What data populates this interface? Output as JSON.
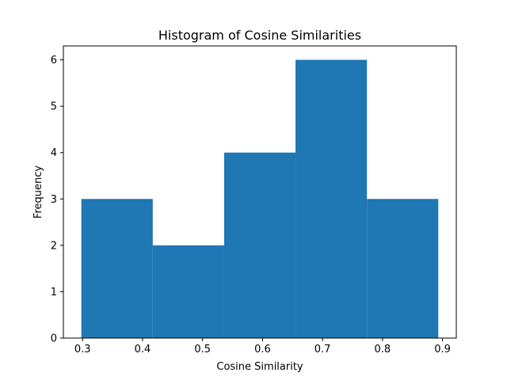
{
  "colors": {
    "bar": "#1f77b4",
    "axis": "#000000",
    "background": "#ffffff"
  },
  "chart_data": {
    "type": "bar",
    "title": "Histogram of Cosine Similarities",
    "xlabel": "Cosine Similarity",
    "ylabel": "Frequency",
    "bins": [
      {
        "start": 0.298,
        "end": 0.417,
        "count": 3
      },
      {
        "start": 0.417,
        "end": 0.536,
        "count": 2
      },
      {
        "start": 0.536,
        "end": 0.655,
        "count": 4
      },
      {
        "start": 0.655,
        "end": 0.774,
        "count": 6
      },
      {
        "start": 0.774,
        "end": 0.893,
        "count": 3
      }
    ],
    "xlim": [
      0.268,
      0.923
    ],
    "ylim": [
      0,
      6.3
    ],
    "xticks": [
      0.3,
      0.4,
      0.5,
      0.6,
      0.7,
      0.8,
      0.9
    ],
    "xtick_labels": [
      "0.3",
      "0.4",
      "0.5",
      "0.6",
      "0.7",
      "0.8",
      "0.9"
    ],
    "yticks": [
      0,
      1,
      2,
      3,
      4,
      5,
      6
    ],
    "ytick_labels": [
      "0",
      "1",
      "2",
      "3",
      "4",
      "5",
      "6"
    ],
    "grid": false,
    "legend": "none"
  }
}
